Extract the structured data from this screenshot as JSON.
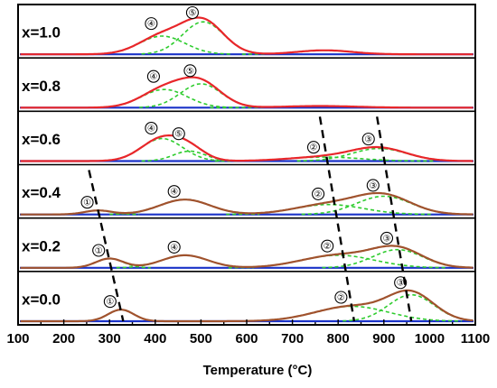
{
  "chart_data": {
    "type": "line",
    "title": "",
    "xlabel": "Temperature (°C)",
    "ylabel": "",
    "xlim": [
      100,
      1100
    ],
    "x_ticks": [
      100,
      200,
      300,
      400,
      500,
      600,
      700,
      800,
      900,
      1000,
      1100
    ],
    "x_tick_labels": [
      "100",
      "200",
      "300",
      "400",
      "500",
      "600",
      "700",
      "800",
      "900",
      "1000",
      "1100"
    ],
    "grid": false,
    "legend": "none",
    "colors": {
      "envelope_red": "#e8262a",
      "envelope_brown": "#a0522d",
      "component": "#2ecc2e",
      "baseline": "#1a32c8",
      "shift_line": "#000000"
    },
    "panels": [
      {
        "label": "x=1.0",
        "envelope_color": "#e8262a",
        "peaks": [
          {
            "marker": "④",
            "center": 415,
            "height": 0.55,
            "width": 50
          },
          {
            "marker": "⑤",
            "center": 505,
            "height": 0.98,
            "width": 45
          },
          {
            "marker": "",
            "center": 770,
            "height": 0.12,
            "width": 60
          }
        ]
      },
      {
        "label": "x=0.8",
        "envelope_color": "#e8262a",
        "peaks": [
          {
            "marker": "④",
            "center": 420,
            "height": 0.55,
            "width": 50
          },
          {
            "marker": "⑤",
            "center": 500,
            "height": 0.72,
            "width": 45
          },
          {
            "marker": "",
            "center": 760,
            "height": 0.05,
            "width": 80
          }
        ]
      },
      {
        "label": "x=0.6",
        "envelope_color": "#e8262a",
        "peaks": [
          {
            "marker": "④",
            "center": 415,
            "height": 0.68,
            "width": 45
          },
          {
            "marker": "⑤",
            "center": 475,
            "height": 0.3,
            "width": 35
          },
          {
            "marker": "②",
            "center": 770,
            "height": 0.12,
            "width": 80
          },
          {
            "marker": "③",
            "center": 890,
            "height": 0.38,
            "width": 60
          }
        ]
      },
      {
        "label": "x=0.4",
        "envelope_color": "#a0522d",
        "peaks": [
          {
            "marker": "①",
            "center": 275,
            "height": 0.12,
            "width": 30
          },
          {
            "marker": "④",
            "center": 465,
            "height": 0.45,
            "width": 55
          },
          {
            "marker": "②",
            "center": 780,
            "height": 0.3,
            "width": 75
          },
          {
            "marker": "③",
            "center": 900,
            "height": 0.55,
            "width": 60
          }
        ]
      },
      {
        "label": "x=0.2",
        "envelope_color": "#a0522d",
        "peaks": [
          {
            "marker": "①",
            "center": 300,
            "height": 0.28,
            "width": 30
          },
          {
            "marker": "④",
            "center": 465,
            "height": 0.38,
            "width": 50
          },
          {
            "marker": "②",
            "center": 800,
            "height": 0.38,
            "width": 80
          },
          {
            "marker": "③",
            "center": 930,
            "height": 0.55,
            "width": 55
          }
        ]
      },
      {
        "label": "x=0.0",
        "envelope_color": "#a0522d",
        "peaks": [
          {
            "marker": "①",
            "center": 325,
            "height": 0.35,
            "width": 28
          },
          {
            "marker": "②",
            "center": 830,
            "height": 0.45,
            "width": 80
          },
          {
            "marker": "③",
            "center": 960,
            "height": 0.8,
            "width": 50
          }
        ]
      }
    ],
    "shift_lines": [
      {
        "name": "peak-1-shift",
        "from": {
          "panel": 3,
          "x": 255
        },
        "to": {
          "panel": 5,
          "x": 330
        }
      },
      {
        "name": "peak-2-shift",
        "from": {
          "panel": 2,
          "x": 760
        },
        "to": {
          "panel": 5,
          "x": 835
        }
      },
      {
        "name": "peak-3-shift",
        "from": {
          "panel": 2,
          "x": 885
        },
        "to": {
          "panel": 5,
          "x": 960
        }
      }
    ]
  }
}
